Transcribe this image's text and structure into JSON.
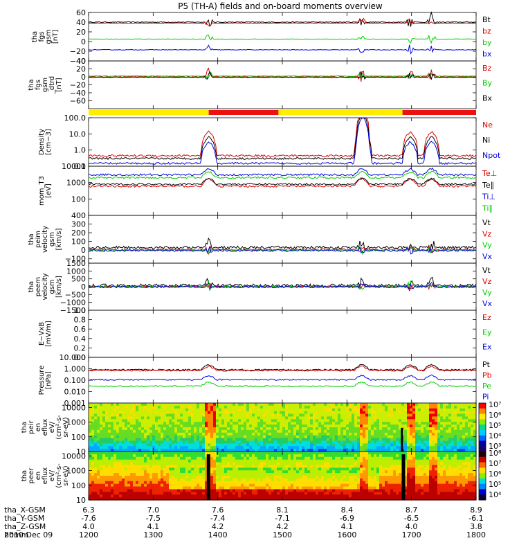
{
  "chart_data": {
    "type": "line",
    "title": "P5 (TH-A) fields and on-board moments overview",
    "date": "2010 Dec 09",
    "x_ticks_hhmm": [
      "1200",
      "1300",
      "1400",
      "1500",
      "1600",
      "1700",
      "1800"
    ],
    "orbit_rows": [
      {
        "label": "tha_X-GSM",
        "values": [
          "6.3",
          "7.0",
          "7.6",
          "8.1",
          "8.4",
          "8.7",
          "8.9"
        ]
      },
      {
        "label": "tha_Y-GSM",
        "values": [
          "-7.6",
          "-7.5",
          "-7.4",
          "-7.1",
          "-6.9",
          "-6.5",
          "-6.1"
        ]
      },
      {
        "label": "tha_Z-GSM",
        "values": [
          "4.0",
          "4.1",
          "4.2",
          "4.2",
          "4.1",
          "4.0",
          "3.8"
        ]
      },
      {
        "label": "hhmm",
        "values": [
          "1200",
          "1300",
          "1400",
          "1500",
          "1600",
          "1700",
          "1800"
        ]
      }
    ],
    "panels": [
      {
        "id": "fgs-gsm",
        "ylabel": [
          "tha",
          "fgs",
          "gsm",
          "[nT]"
        ],
        "ylim": [
          -40,
          60
        ],
        "yticks": [
          "60",
          "40",
          "20",
          "0",
          "−20",
          "−40"
        ],
        "series": [
          {
            "name": "Bt",
            "color": "#000000",
            "base": 40
          },
          {
            "name": "bz",
            "color": "#dd0000",
            "base": 38
          },
          {
            "name": "by",
            "color": "#00cc00",
            "base": 5
          },
          {
            "name": "bx",
            "color": "#0000dd",
            "base": -17
          }
        ]
      },
      {
        "id": "fgs-gsm-dtrd",
        "ylabel": [
          "tha",
          "fgs",
          "gsm",
          "_dtrd",
          "[nT]"
        ],
        "ylim": [
          -80,
          40
        ],
        "yticks": [
          "40",
          "20",
          "0",
          "−20",
          "−40",
          "−60"
        ],
        "series": [
          {
            "name": "Bz",
            "color": "#dd0000",
            "base": 0
          },
          {
            "name": "By",
            "color": "#00cc00",
            "base": 2
          },
          {
            "name": "Bx",
            "color": "#000000",
            "base": -1
          }
        ]
      },
      {
        "id": "density",
        "ylabel": [
          "Density",
          "[cm−3]"
        ],
        "scale": "log",
        "ylim": [
          0.1,
          100
        ],
        "yticks": [
          "100.0",
          "10.0",
          "1.0",
          "0.1"
        ],
        "series": [
          {
            "name": "Ne",
            "color": "#dd0000",
            "base": 0.45
          },
          {
            "name": "Ni",
            "color": "#000000",
            "base": 0.3
          },
          {
            "name": "Npot",
            "color": "#0000dd",
            "base": 0.15
          }
        ]
      },
      {
        "id": "temperature",
        "ylabel": [
          "mom_T3",
          "[eV]"
        ],
        "scale": "log",
        "ylim": [
          10,
          10000
        ],
        "yticks": [
          "10000",
          "1000",
          "100"
        ],
        "series": [
          {
            "name": "Te⊥",
            "color": "#dd0000",
            "base": 600
          },
          {
            "name": "Te∥",
            "color": "#000000",
            "base": 800
          },
          {
            "name": "Ti⊥",
            "color": "#0000dd",
            "base": 3000
          },
          {
            "name": "Ti∥",
            "color": "#00cc00",
            "base": 2000
          }
        ]
      },
      {
        "id": "peim-velocity",
        "ylabel": [
          "tha",
          "peim",
          "velocity",
          "gsm",
          "[km/s]"
        ],
        "ylim": [
          -150,
          400
        ],
        "yticks": [
          "400",
          "300",
          "200",
          "100",
          "0",
          "−100"
        ],
        "series": [
          {
            "name": "Vt",
            "color": "#000000",
            "base": 30
          },
          {
            "name": "Vz",
            "color": "#dd0000",
            "base": 5
          },
          {
            "name": "Vy",
            "color": "#00cc00",
            "base": 0
          },
          {
            "name": "Vx",
            "color": "#0000dd",
            "base": -5
          }
        ]
      },
      {
        "id": "peem-velocity",
        "ylabel": [
          "tha",
          "peem",
          "velocity",
          "gsm",
          "[km/s]"
        ],
        "ylim": [
          -1500,
          1500
        ],
        "yticks": [
          "1500",
          "1000",
          "500",
          "0",
          "−500",
          "−1000",
          "−1500"
        ],
        "series": [
          {
            "name": "Vt",
            "color": "#000000",
            "base": 80
          },
          {
            "name": "Vz",
            "color": "#dd0000",
            "base": 0
          },
          {
            "name": "Vy",
            "color": "#00cc00",
            "base": 0
          },
          {
            "name": "Vx",
            "color": "#0000dd",
            "base": -10
          }
        ]
      },
      {
        "id": "e-field",
        "ylabel": [
          "E−VxB",
          "[mV/m]"
        ],
        "ylim": [
          0,
          1
        ],
        "yticks": [
          "1.0",
          "0.8",
          "0.6",
          "0.4",
          "0.2",
          "0.0"
        ],
        "series": [
          {
            "name": "Ez",
            "color": "#dd0000"
          },
          {
            "name": "Ey",
            "color": "#00cc00"
          },
          {
            "name": "Ex",
            "color": "#0000dd"
          }
        ]
      },
      {
        "id": "pressure",
        "ylabel": [
          "Pressure",
          "[nPa]"
        ],
        "scale": "log",
        "ylim": [
          0.001,
          10
        ],
        "yticks": [
          "10.000",
          "1.000",
          "0.100",
          "0.010",
          "0.001"
        ],
        "series": [
          {
            "name": "Pt",
            "color": "#000000",
            "base": 0.8
          },
          {
            "name": "Pb",
            "color": "#dd0000",
            "base": 0.7
          },
          {
            "name": "Pe",
            "color": "#00cc00",
            "base": 0.03
          },
          {
            "name": "Pi",
            "color": "#0000dd",
            "base": 0.11
          }
        ]
      },
      {
        "id": "peir-eflux",
        "ylabel": [
          "tha",
          "peir",
          "en",
          "eflux",
          "eV/",
          "(cm²-s-",
          "sr-eV)"
        ],
        "scale": "log",
        "ylim": [
          10,
          20000
        ],
        "yticks": [
          "10000",
          "1000",
          "100",
          "10"
        ],
        "colorbar": {
          "labels": [
            "10⁷",
            "10⁶",
            "10⁵",
            "10⁴",
            "10³"
          ]
        }
      },
      {
        "id": "peer-eflux",
        "ylabel": [
          "tha",
          "peer",
          "en",
          "eflux",
          "eV/",
          "(cm²-s-",
          "sr-eV)"
        ],
        "scale": "log",
        "ylim": [
          10,
          20000
        ],
        "yticks": [
          "10000",
          "1000",
          "100",
          "10"
        ],
        "colorbar": {
          "labels": [
            "10⁸",
            "10⁷",
            "10⁶",
            "10⁵",
            "10⁴"
          ]
        }
      }
    ],
    "mode_bar": [
      {
        "from": 0.0,
        "to": 0.31,
        "color": "#ffee00"
      },
      {
        "from": 0.31,
        "to": 0.49,
        "color": "#ee1111"
      },
      {
        "from": 0.49,
        "to": 0.81,
        "color": "#ffee00"
      },
      {
        "from": 0.81,
        "to": 1.0,
        "color": "#ee1111"
      }
    ],
    "events": [
      0.31,
      0.705,
      0.83,
      0.885
    ]
  }
}
